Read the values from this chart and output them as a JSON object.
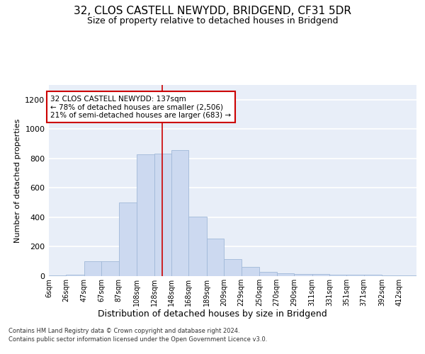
{
  "title": "32, CLOS CASTELL NEWYDD, BRIDGEND, CF31 5DR",
  "subtitle": "Size of property relative to detached houses in Bridgend",
  "xlabel_bottom": "Distribution of detached houses by size in Bridgend",
  "ylabel": "Number of detached properties",
  "footer1": "Contains HM Land Registry data © Crown copyright and database right 2024.",
  "footer2": "Contains public sector information licensed under the Open Government Licence v3.0.",
  "annotation_line1": "32 CLOS CASTELL NEWYDD: 137sqm",
  "annotation_line2": "← 78% of detached houses are smaller (2,506)",
  "annotation_line3": "21% of semi-detached houses are larger (683) →",
  "property_size": 137,
  "bar_color": "#ccd9f0",
  "bar_edge_color": "#a0b8d8",
  "ref_line_color": "#cc0000",
  "background_color": "#e8eef8",
  "grid_color": "#ffffff",
  "categories": [
    "6sqm",
    "26sqm",
    "47sqm",
    "67sqm",
    "87sqm",
    "108sqm",
    "128sqm",
    "148sqm",
    "168sqm",
    "189sqm",
    "209sqm",
    "229sqm",
    "250sqm",
    "270sqm",
    "290sqm",
    "311sqm",
    "331sqm",
    "351sqm",
    "371sqm",
    "392sqm",
    "412sqm"
  ],
  "bin_edges": [
    6,
    26,
    47,
    67,
    87,
    108,
    128,
    148,
    168,
    189,
    209,
    229,
    250,
    270,
    290,
    311,
    331,
    351,
    371,
    392,
    412,
    432
  ],
  "values": [
    5,
    10,
    100,
    100,
    500,
    830,
    835,
    855,
    405,
    255,
    115,
    65,
    30,
    20,
    13,
    13,
    10,
    8,
    10,
    5,
    3
  ],
  "ylim": [
    0,
    1300
  ],
  "yticks": [
    0,
    200,
    400,
    600,
    800,
    1000,
    1200
  ]
}
